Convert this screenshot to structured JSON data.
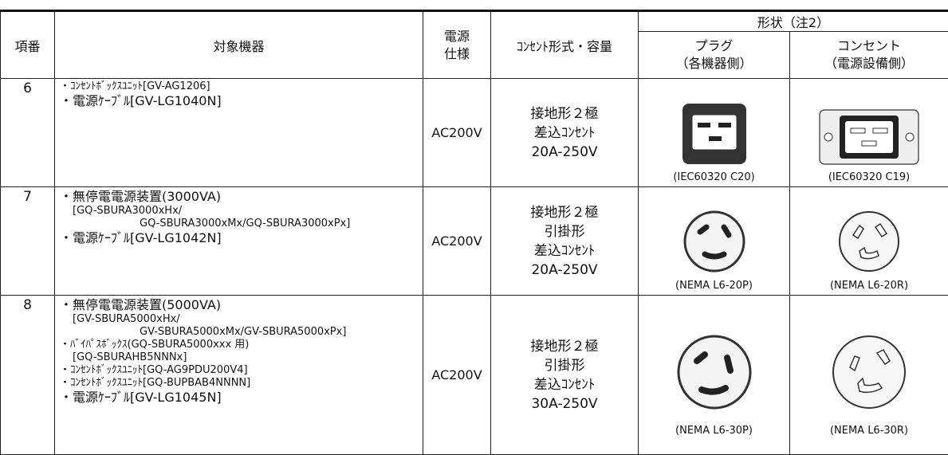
{
  "table": {
    "header": {
      "no": "項番",
      "device": "対象機器",
      "power": [
        "電源",
        "仕様"
      ],
      "outlet": "ｺﾝｾﾝﾄ形式・容量",
      "shape": "形状（注2）",
      "plug": [
        "プラグ",
        "（各機器側）"
      ],
      "socket": [
        "コンセント",
        "（電源設備側）"
      ]
    },
    "rows": [
      {
        "no": "6",
        "items": [
          "・ｺﾝｾﾝﾄﾎﾞｯｸｽﾕﾆｯﾄ[GV-AG1206]",
          "・電源ｹｰﾌﾞﾙ[GV-LG1040N]"
        ],
        "power": "AC200V",
        "outlet": [
          "接地形２極",
          "差込ｺﾝｾﾝﾄ",
          "20A-250V"
        ],
        "plug": "(IEC60320 C20)",
        "socket": "(IEC60320 C19)"
      },
      {
        "no": "7",
        "items": [
          "・無停電電源装置(3000VA)",
          "[GQ-SBURA3000xHx/",
          "GQ-SBURA3000xMx/GQ-SBURA3000xPx]",
          "・電源ｹｰﾌﾞﾙ[GV-LG1042N]"
        ],
        "power": "AC200V",
        "outlet": [
          "接地形２極",
          "引掛形",
          "差込ｺﾝｾﾝﾄ",
          "20A-250V"
        ],
        "plug": "(NEMA L6-20P)",
        "socket": "(NEMA L6-20R)"
      },
      {
        "no": "8",
        "items": [
          "・無停電電源装置(5000VA)",
          "[GV-SBURA5000xHx/",
          "GV-SBURA5000xMx/GV-SBURA5000xPx]",
          "・ﾊﾞｲﾊﾟｽﾎﾞｯｸｽ(GQ-SBURA5000xxx 用)",
          "[GQ-SBURAHB5NNNx]",
          "・ｺﾝｾﾝﾄﾎﾞｯｸｽﾕﾆｯﾄ[GQ-AG9PDU200V4]",
          "・ｺﾝｾﾝﾄﾎﾞｯｸｽﾕﾆｯﾄ[GQ-BUPBAB4NNNN]",
          "・電源ｹｰﾌﾞﾙ[GV-LG1045N]"
        ],
        "power": "AC200V",
        "outlet": [
          "接地形２極",
          "引掛形",
          "差込ｺﾝｾﾝﾄ",
          "30A-250V"
        ],
        "plug": "(NEMA L6-30P)",
        "socket": "(NEMA L6-30R)"
      }
    ]
  }
}
